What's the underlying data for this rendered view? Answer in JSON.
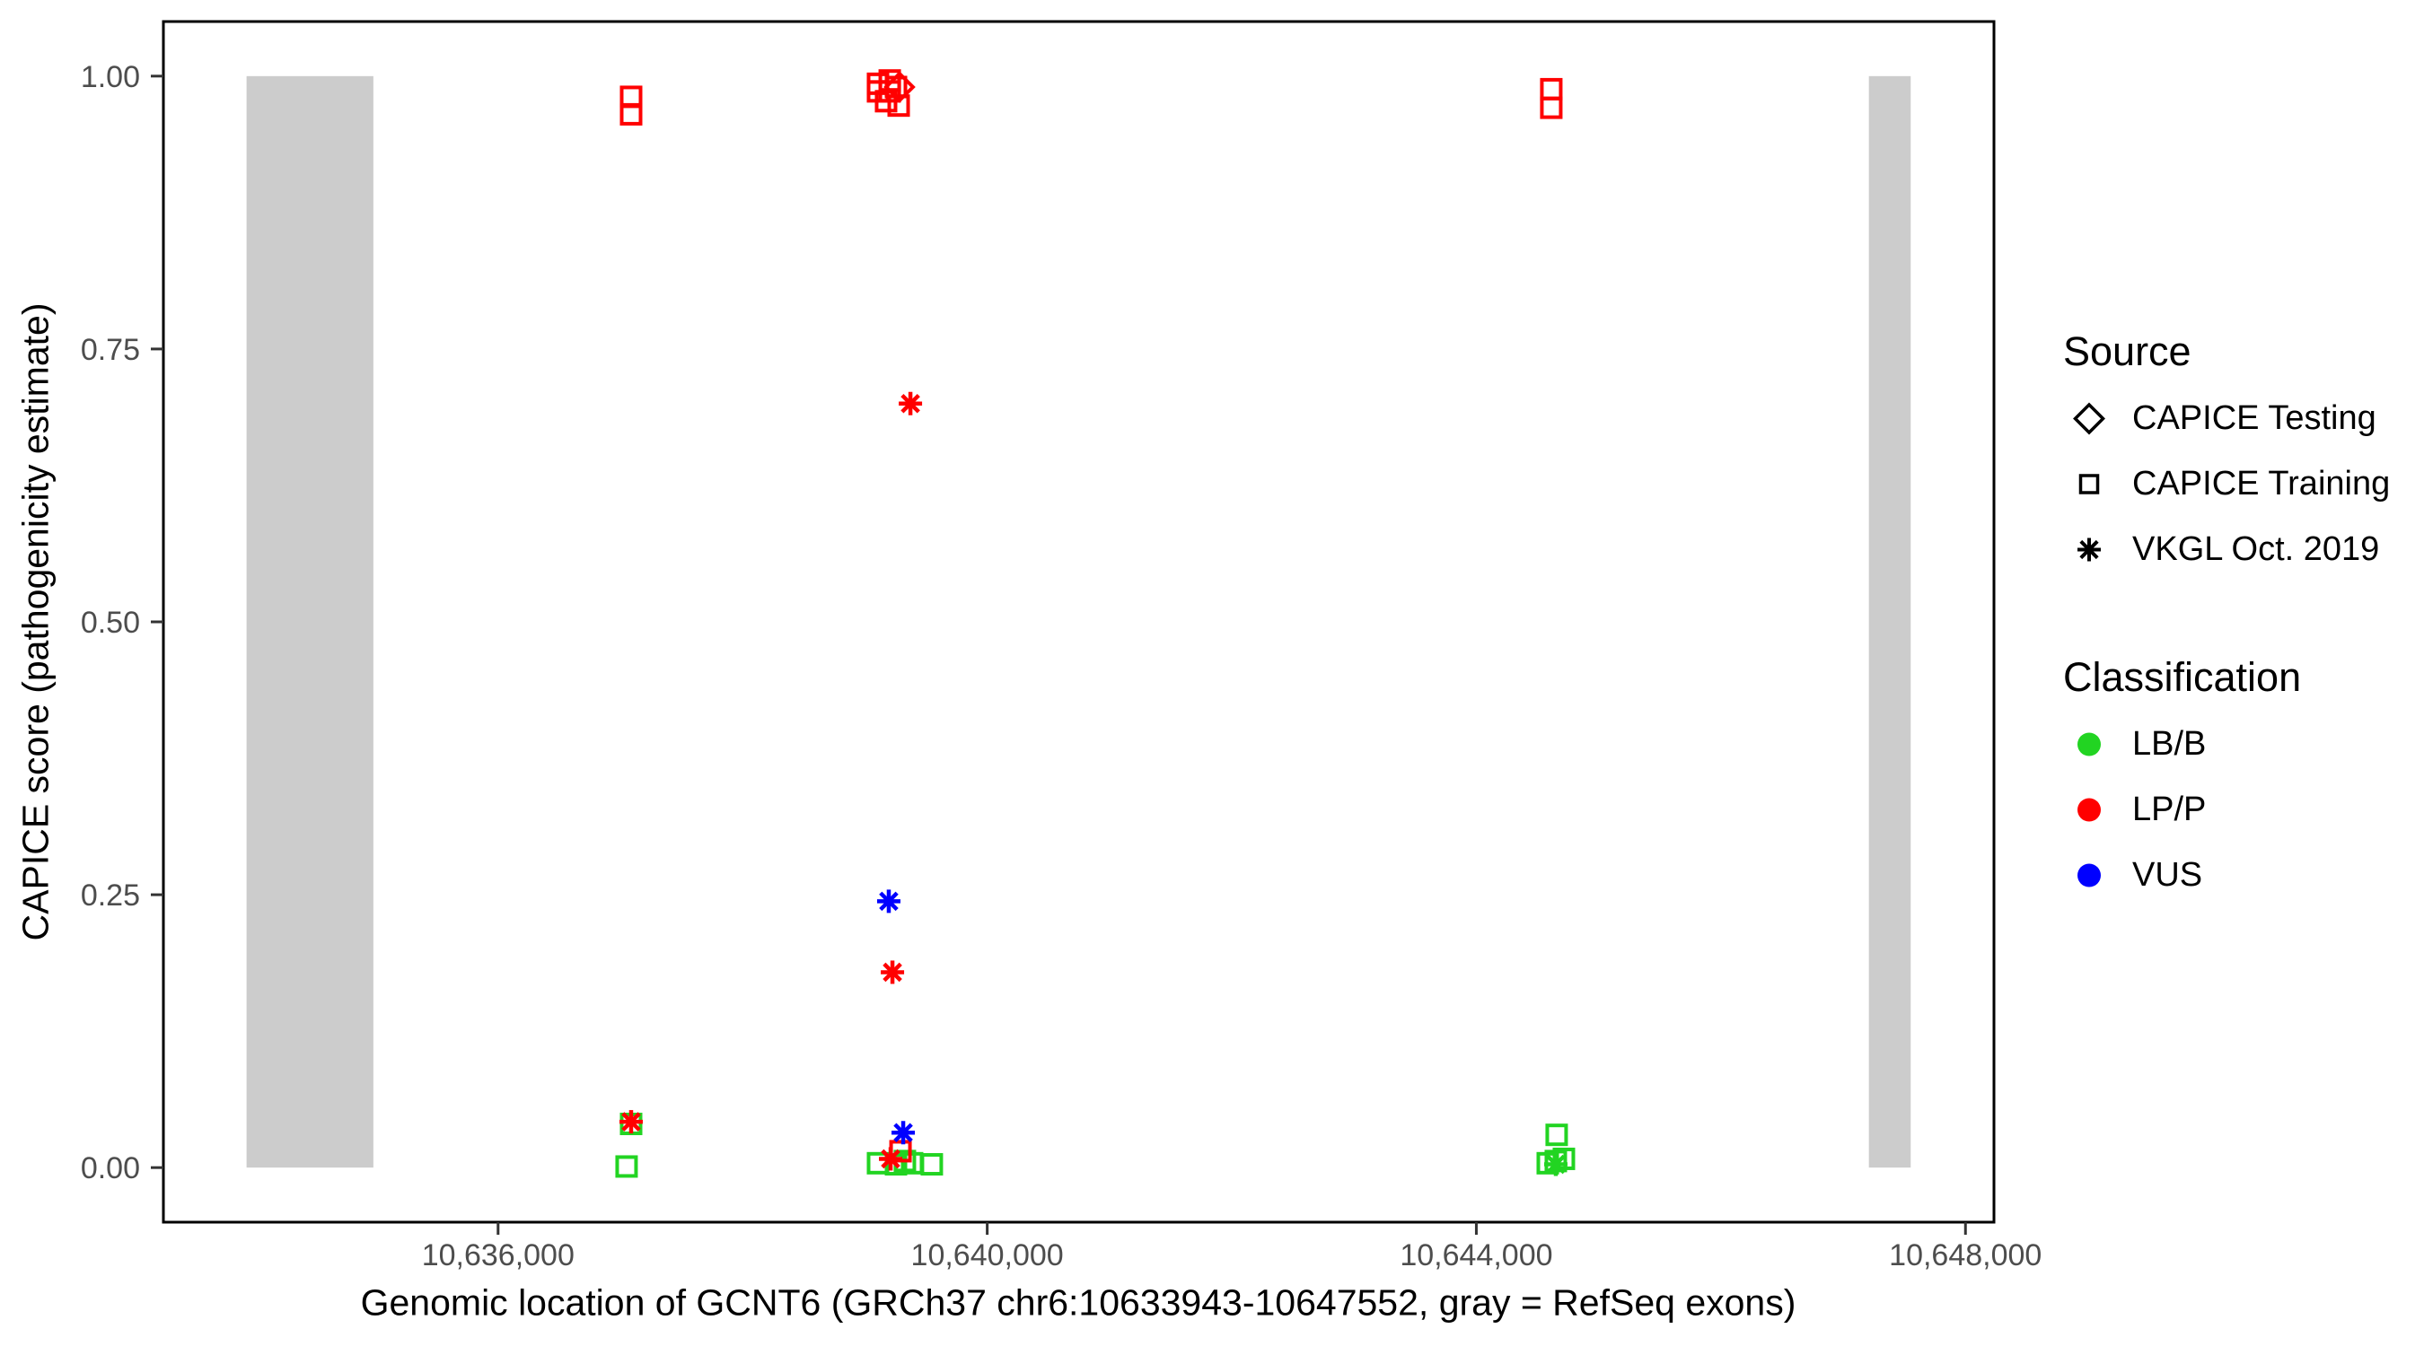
{
  "chart_data": {
    "type": "scatter",
    "title": "",
    "xlabel": "Genomic location of GCNT6 (GRCh37 chr6:10633943-10647552, gray = RefSeq exons)",
    "ylabel": "CAPICE score (pathogenicity estimate)",
    "xlim": [
      10633263,
      10648233
    ],
    "ylim": [
      -0.05,
      1.05
    ],
    "grid": false,
    "panel_border_color": "#000000",
    "tick_color": "#333333",
    "axis_text_color": "#4D4D4D",
    "exon_color": "#CCCCCC",
    "x_ticks": [
      {
        "value": 10636000,
        "label": "10,636,000"
      },
      {
        "value": 10640000,
        "label": "10,640,000"
      },
      {
        "value": 10644000,
        "label": "10,644,000"
      },
      {
        "value": 10648000,
        "label": "10,648,000"
      }
    ],
    "y_ticks": [
      {
        "value": 0.0,
        "label": "0.00"
      },
      {
        "value": 0.25,
        "label": "0.25"
      },
      {
        "value": 0.5,
        "label": "0.50"
      },
      {
        "value": 0.75,
        "label": "0.75"
      },
      {
        "value": 1.0,
        "label": "1.00"
      }
    ],
    "refseq_exons": [
      {
        "start": 10633943,
        "end": 10634980
      },
      {
        "start": 10647210,
        "end": 10647552
      }
    ],
    "series": [
      {
        "name": "LB/B — CAPICE Training",
        "classification": "LB/B",
        "source": "CAPICE Training",
        "shape": "square",
        "color": "#22D422",
        "points": [
          [
            10637088,
            0.04
          ],
          [
            10637051,
            0.001
          ],
          [
            10639107,
            0.004
          ],
          [
            10639254,
            0.003
          ],
          [
            10639327,
            0.006
          ],
          [
            10639386,
            0.004
          ],
          [
            10639547,
            0.003
          ],
          [
            10644657,
            0.03
          ],
          [
            10644584,
            0.004
          ],
          [
            10644650,
            0.006
          ],
          [
            10644716,
            0.008
          ]
        ]
      },
      {
        "name": "LP/P — CAPICE Training",
        "classification": "LP/P",
        "source": "CAPICE Training",
        "shape": "square",
        "color": "#FF0000",
        "points": [
          [
            10637088,
            0.981
          ],
          [
            10637088,
            0.965
          ],
          [
            10639107,
            0.993
          ],
          [
            10639203,
            0.996
          ],
          [
            10639254,
            0.99
          ],
          [
            10639107,
            0.986
          ],
          [
            10639203,
            0.986
          ],
          [
            10639173,
            0.977
          ],
          [
            10639276,
            0.973
          ],
          [
            10644613,
            0.988
          ],
          [
            10644613,
            0.971
          ],
          [
            10639291,
            0.015
          ]
        ]
      },
      {
        "name": "LP/P — CAPICE Testing",
        "classification": "LP/P",
        "source": "CAPICE Testing",
        "shape": "diamond",
        "color": "#FF0000",
        "points": [
          [
            10639283,
            0.99
          ]
        ]
      },
      {
        "name": "LB/B — VKGL Oct. 2019",
        "classification": "LB/B",
        "source": "VKGL Oct. 2019",
        "shape": "asterisk",
        "color": "#22D422",
        "points": [
          [
            10644650,
            0.003
          ]
        ]
      },
      {
        "name": "LP/P — VKGL Oct. 2019",
        "classification": "LP/P",
        "source": "VKGL Oct. 2019",
        "shape": "asterisk",
        "color": "#FF0000",
        "points": [
          [
            10639372,
            0.7
          ],
          [
            10639225,
            0.179
          ],
          [
            10639210,
            0.008
          ],
          [
            10637088,
            0.042
          ]
        ]
      },
      {
        "name": "VUS — VKGL Oct. 2019",
        "classification": "VUS",
        "source": "VKGL Oct. 2019",
        "shape": "asterisk",
        "color": "#0000FF",
        "points": [
          [
            10639195,
            0.244
          ],
          [
            10639313,
            0.032
          ]
        ]
      }
    ]
  },
  "legend": {
    "source": {
      "title": "Source",
      "items": [
        {
          "label": "CAPICE Testing",
          "shape": "diamond"
        },
        {
          "label": "CAPICE Training",
          "shape": "square"
        },
        {
          "label": "VKGL Oct. 2019",
          "shape": "asterisk"
        }
      ]
    },
    "classification": {
      "title": "Classification",
      "items": [
        {
          "label": "LB/B",
          "color": "#22D422"
        },
        {
          "label": "LP/P",
          "color": "#FF0000"
        },
        {
          "label": "VUS",
          "color": "#0000FF"
        }
      ]
    }
  }
}
